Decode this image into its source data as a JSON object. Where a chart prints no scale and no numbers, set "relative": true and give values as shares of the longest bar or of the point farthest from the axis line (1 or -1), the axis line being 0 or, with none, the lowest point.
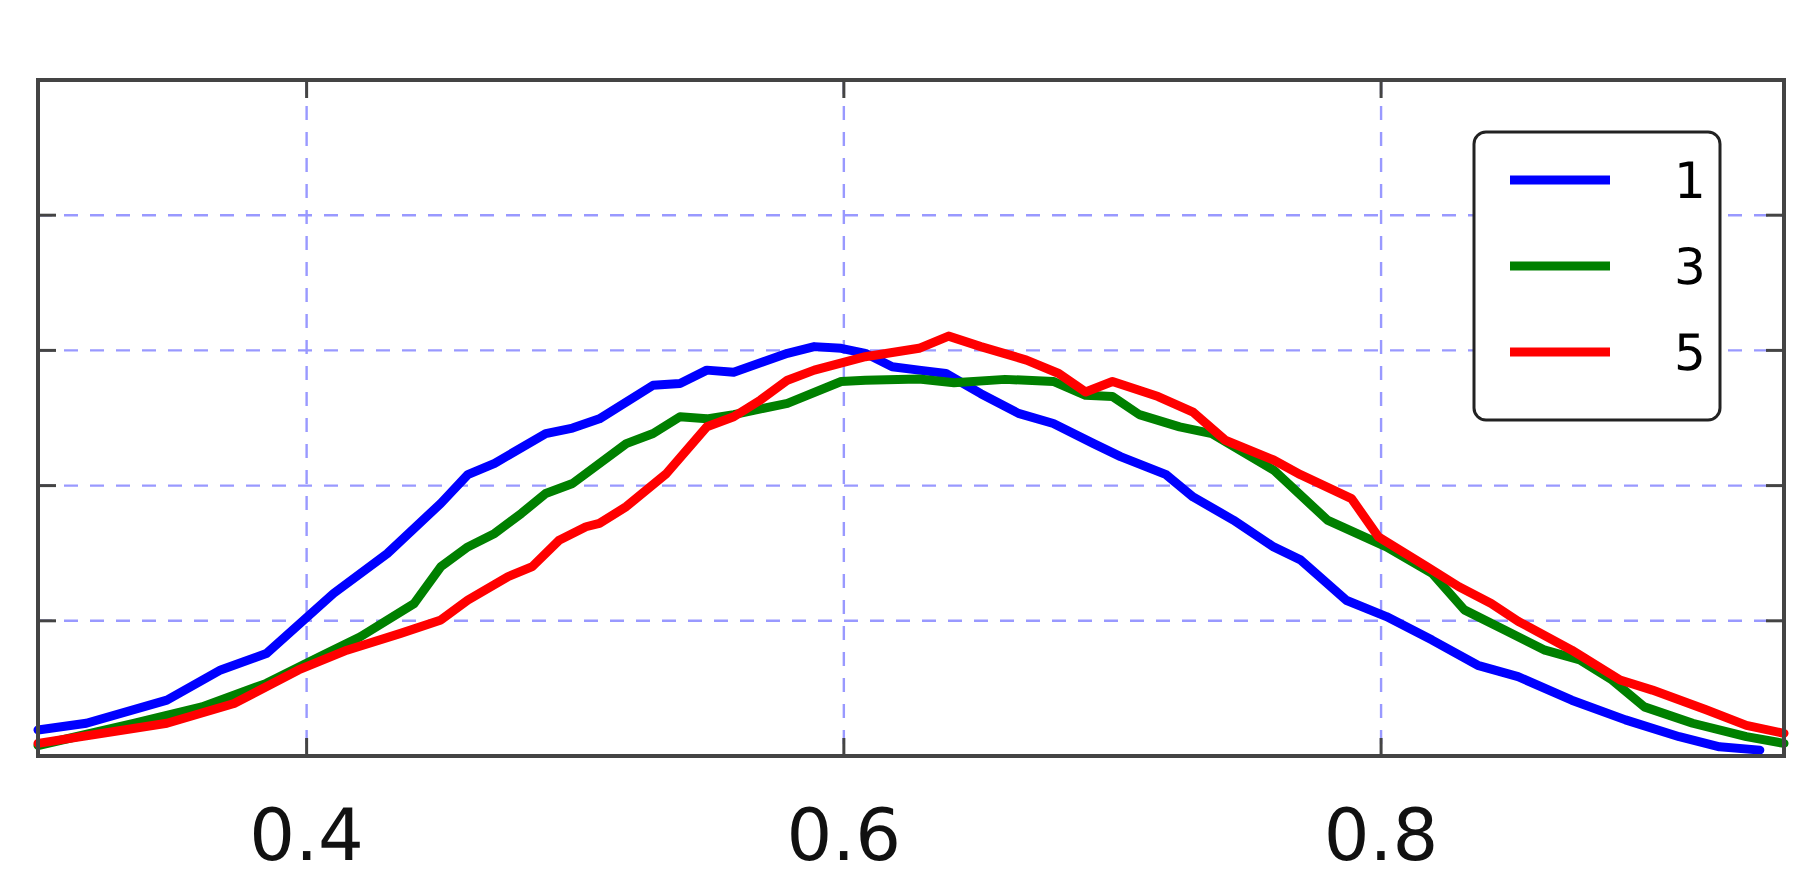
{
  "chart_data": {
    "type": "line",
    "relative": true,
    "xlim": [
      0.3,
      0.95
    ],
    "xticks": [
      0.4,
      0.6,
      0.8
    ],
    "grid": true,
    "legend": "top right",
    "line_style": "solid",
    "marker": "none",
    "series": [
      {
        "name": "1",
        "color": "#0000ff",
        "x": [
          0.3,
          0.318,
          0.348,
          0.368,
          0.385,
          0.41,
          0.43,
          0.45,
          0.46,
          0.47,
          0.489,
          0.499,
          0.509,
          0.529,
          0.539,
          0.549,
          0.559,
          0.579,
          0.589,
          0.599,
          0.608,
          0.618,
          0.628,
          0.638,
          0.651,
          0.665,
          0.678,
          0.693,
          0.703,
          0.72,
          0.73,
          0.745,
          0.76,
          0.77,
          0.787,
          0.802,
          0.819,
          0.836,
          0.851,
          0.871,
          0.891,
          0.911,
          0.926,
          0.941
        ],
        "values": [
          0.062,
          0.078,
          0.133,
          0.205,
          0.244,
          0.387,
          0.482,
          0.602,
          0.67,
          0.697,
          0.768,
          0.781,
          0.803,
          0.883,
          0.887,
          0.919,
          0.914,
          0.959,
          0.975,
          0.971,
          0.959,
          0.927,
          0.919,
          0.911,
          0.863,
          0.816,
          0.792,
          0.744,
          0.713,
          0.67,
          0.617,
          0.562,
          0.498,
          0.467,
          0.371,
          0.332,
          0.276,
          0.216,
          0.189,
          0.133,
          0.086,
          0.046,
          0.022,
          0.014
        ]
      },
      {
        "name": "3",
        "color": "#008000",
        "x": [
          0.3,
          0.336,
          0.361,
          0.385,
          0.405,
          0.42,
          0.44,
          0.45,
          0.46,
          0.47,
          0.48,
          0.489,
          0.499,
          0.519,
          0.529,
          0.539,
          0.549,
          0.559,
          0.579,
          0.599,
          0.608,
          0.628,
          0.641,
          0.66,
          0.678,
          0.69,
          0.7,
          0.71,
          0.725,
          0.737,
          0.76,
          0.78,
          0.802,
          0.819,
          0.831,
          0.846,
          0.861,
          0.874,
          0.886,
          0.898,
          0.916,
          0.936,
          0.95
        ],
        "values": [
          0.025,
          0.078,
          0.117,
          0.173,
          0.237,
          0.284,
          0.363,
          0.451,
          0.498,
          0.53,
          0.578,
          0.625,
          0.649,
          0.744,
          0.768,
          0.808,
          0.803,
          0.813,
          0.84,
          0.892,
          0.895,
          0.898,
          0.889,
          0.897,
          0.892,
          0.859,
          0.856,
          0.813,
          0.784,
          0.768,
          0.681,
          0.562,
          0.498,
          0.435,
          0.348,
          0.3,
          0.252,
          0.229,
          0.181,
          0.117,
          0.078,
          0.046,
          0.03
        ]
      },
      {
        "name": "5",
        "color": "#ff0000",
        "x": [
          0.3,
          0.348,
          0.373,
          0.397,
          0.415,
          0.435,
          0.45,
          0.46,
          0.475,
          0.484,
          0.494,
          0.504,
          0.509,
          0.519,
          0.534,
          0.549,
          0.559,
          0.569,
          0.579,
          0.589,
          0.608,
          0.628,
          0.639,
          0.651,
          0.668,
          0.68,
          0.69,
          0.7,
          0.717,
          0.73,
          0.742,
          0.76,
          0.77,
          0.789,
          0.799,
          0.817,
          0.829,
          0.841,
          0.851,
          0.871,
          0.889,
          0.901,
          0.921,
          0.936,
          0.95
        ],
        "values": [
          0.03,
          0.078,
          0.125,
          0.205,
          0.252,
          0.292,
          0.324,
          0.371,
          0.427,
          0.451,
          0.514,
          0.546,
          0.554,
          0.594,
          0.673,
          0.784,
          0.808,
          0.848,
          0.895,
          0.919,
          0.951,
          0.971,
          1,
          0.975,
          0.943,
          0.911,
          0.867,
          0.892,
          0.856,
          0.819,
          0.752,
          0.705,
          0.67,
          0.613,
          0.522,
          0.451,
          0.403,
          0.363,
          0.321,
          0.252,
          0.181,
          0.157,
          0.11,
          0.073,
          0.054
        ]
      }
    ]
  }
}
